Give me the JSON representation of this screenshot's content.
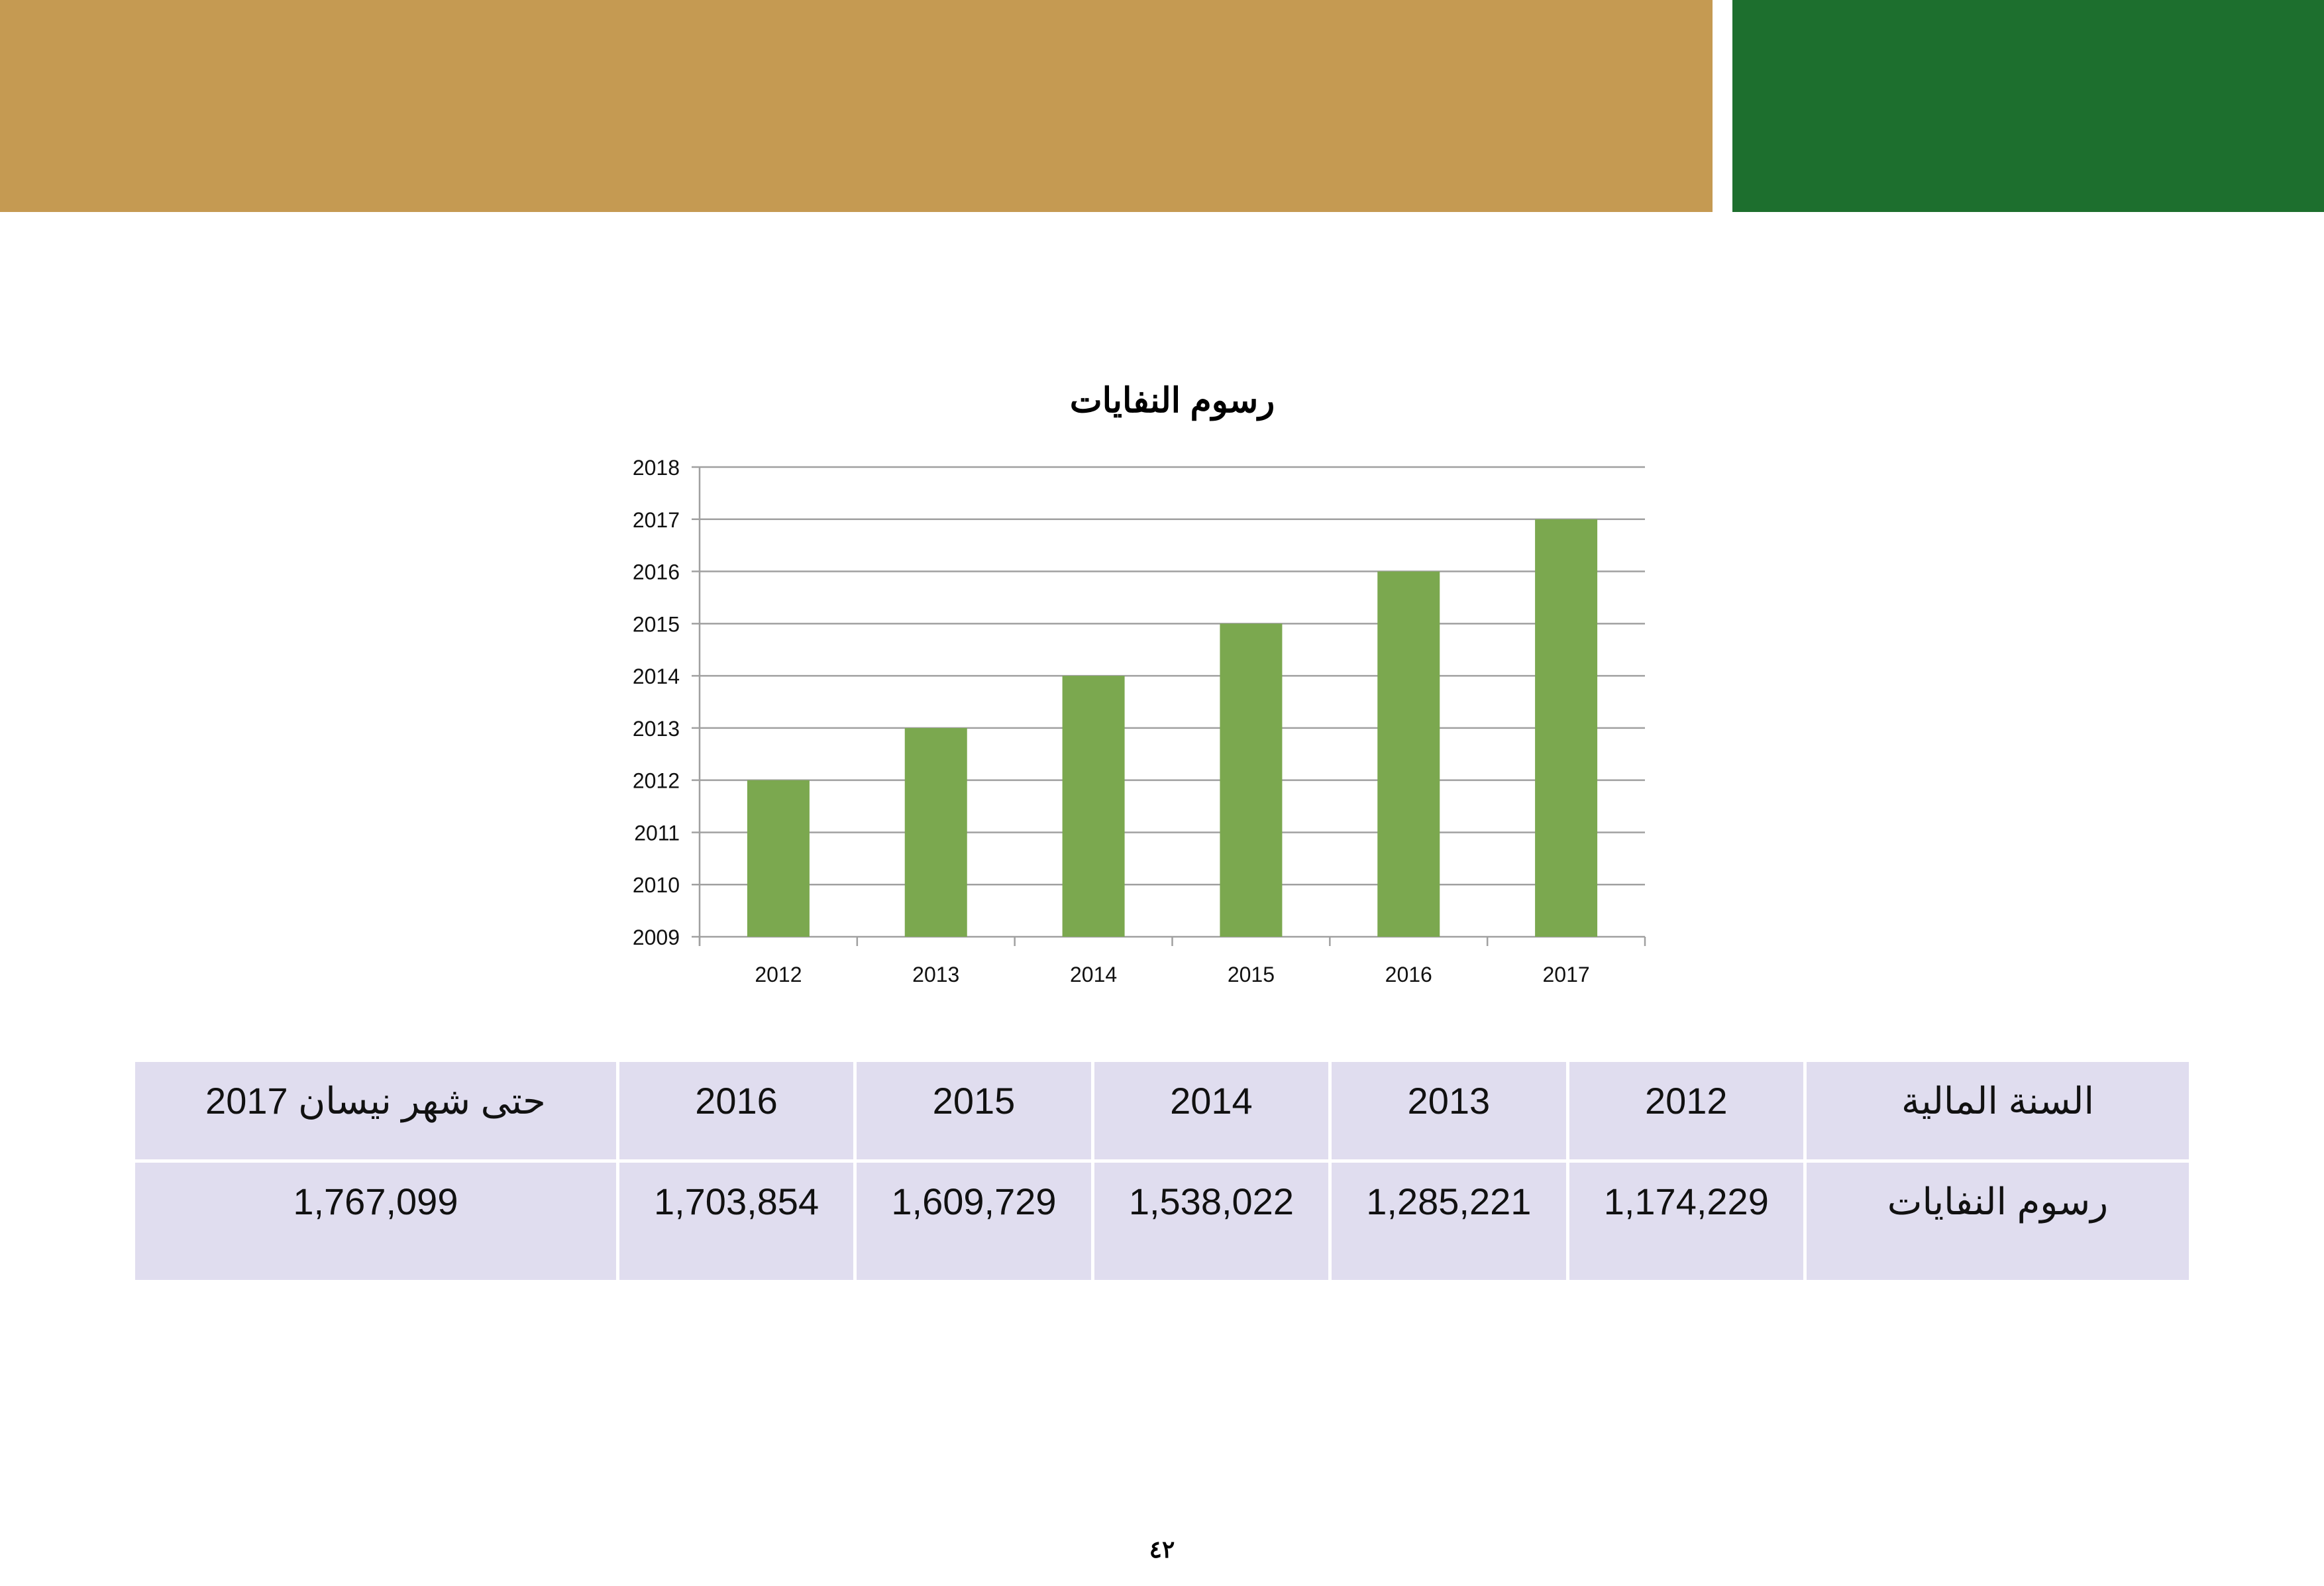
{
  "header": {
    "colors": {
      "tan": "#c59a52",
      "green": "#1d6f2e"
    }
  },
  "chart_data": {
    "type": "bar",
    "title": "رسوم النفايات",
    "categories": [
      "2012",
      "2013",
      "2014",
      "2015",
      "2016",
      "2017"
    ],
    "values": [
      2012,
      2013,
      2014,
      2015,
      2016,
      2017
    ],
    "ylim": [
      2009,
      2018
    ],
    "yticks": [
      "2009",
      "2010",
      "2011",
      "2012",
      "2013",
      "2014",
      "2015",
      "2016",
      "2017",
      "2018"
    ],
    "grid": true,
    "bar_color": "#7ba84f"
  },
  "table": {
    "header": [
      "السنة المالية",
      "2012",
      "2013",
      "2014",
      "2015",
      "2016",
      "حتى شهر نيسان 2017"
    ],
    "row": [
      "رسوم النفايات",
      "1,174,229",
      "1,285,221",
      "1,538,022",
      "1,609,729",
      "1,703,854",
      "1,767,099"
    ]
  },
  "page_number": "٤٢"
}
